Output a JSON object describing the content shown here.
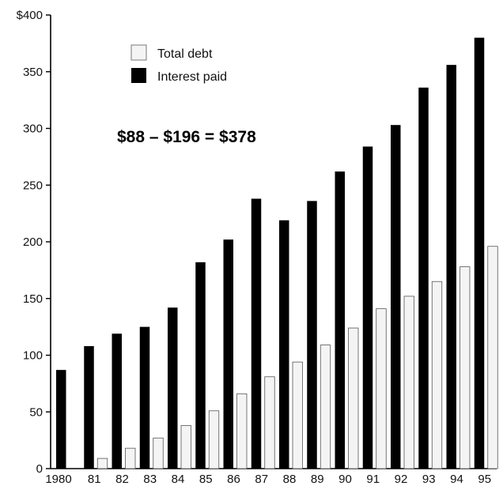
{
  "chart_data": {
    "type": "bar",
    "categories": [
      "1980",
      "81",
      "82",
      "83",
      "84",
      "85",
      "86",
      "87",
      "88",
      "89",
      "90",
      "91",
      "92",
      "93",
      "94",
      "95"
    ],
    "series": [
      {
        "name": "Interest paid",
        "values": [
          87,
          108,
          119,
          125,
          142,
          182,
          202,
          238,
          219,
          236,
          262,
          284,
          303,
          336,
          356,
          380
        ],
        "color": "#000000"
      },
      {
        "name": "Total debt",
        "values": [
          0,
          9,
          18,
          27,
          38,
          51,
          66,
          81,
          94,
          109,
          124,
          141,
          152,
          165,
          178,
          196
        ],
        "color": "#f4f4f4"
      }
    ],
    "y_ticks": [
      "$400",
      "350",
      "300",
      "250",
      "200",
      "150",
      "100",
      "50",
      "0"
    ],
    "ylim": [
      0,
      400
    ],
    "annotation": "$88 – $196 = $378",
    "legend": [
      {
        "label": "Total debt",
        "color": "#f4f4f4"
      },
      {
        "label": "Interest paid",
        "color": "#000000"
      }
    ],
    "legend_position": "top-left",
    "grid": false,
    "title": "",
    "xlabel": "",
    "ylabel": ""
  }
}
